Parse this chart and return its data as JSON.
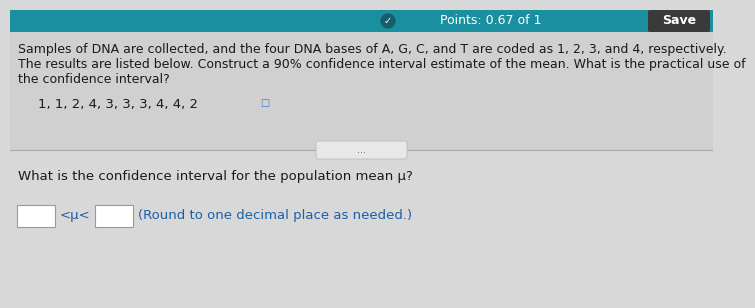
{
  "points_text": "Points: 0.67 of 1",
  "save_text": "Save",
  "header_bg": "#1a8fa0",
  "save_bg": "#3a3a3a",
  "body_bg": "#d8d8d8",
  "main_text_line1": "Samples of DNA are collected, and the four DNA bases of A, G, C, and T are coded as 1, 2, 3, and 4, respectively.",
  "main_text_line2": "The results are listed below. Construct a 90% confidence interval estimate of the mean. What is the practical use of",
  "main_text_line3": "the confidence interval?",
  "data_line": "1, 1, 2, 4, 3, 3, 3, 4, 4, 2",
  "divider_text": "...",
  "question_text": "What is the confidence interval for the population mean μ?",
  "answer_text_color": "#1a5faa",
  "main_text_color": "#1a1a1a",
  "question_text_color": "#1a1a1a",
  "points_text_color": "#ffffff",
  "checkmark_color": "#4fc040",
  "main_fontsize": 9.0,
  "data_fontsize": 9.5,
  "question_fontsize": 9.5,
  "answer_fontsize": 9.5
}
